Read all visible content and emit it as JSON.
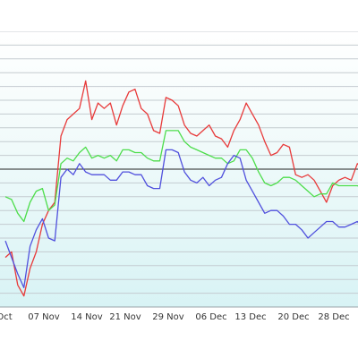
{
  "chart_data": {
    "type": "line",
    "title": "",
    "xlabel": "",
    "ylabel": "",
    "x_tick_labels": [
      "Oct",
      "07 Nov",
      "14 Nov",
      "21 Nov",
      "29 Nov",
      "06 Dec",
      "13 Dec",
      "20 Dec",
      "28 Dec"
    ],
    "x": [
      0,
      1,
      2,
      3,
      4,
      5,
      6,
      7,
      8,
      9,
      10,
      11,
      12,
      13,
      14,
      15,
      16,
      17,
      18,
      19,
      20,
      21,
      22,
      23,
      24,
      25,
      26,
      27,
      28,
      29,
      30,
      31,
      32,
      33,
      34,
      35,
      36,
      37,
      38,
      39,
      40,
      41,
      42,
      43,
      44,
      45,
      46,
      47,
      48,
      49,
      50,
      51,
      52,
      53,
      54,
      55,
      56,
      57,
      58,
      59
    ],
    "ylim": [
      0,
      100
    ],
    "grid": true,
    "reference_line": 50,
    "series": [
      {
        "color": "#e83a3a",
        "values": [
          18,
          20,
          8,
          4,
          14,
          20,
          30,
          35,
          38,
          62,
          68,
          70,
          72,
          82,
          68,
          74,
          72,
          74,
          66,
          73,
          78,
          79,
          72,
          70,
          64,
          63,
          76,
          75,
          73,
          66,
          63,
          62,
          64,
          66,
          62,
          61,
          58,
          64,
          68,
          74,
          70,
          66,
          60,
          55,
          56,
          59,
          58,
          48,
          47,
          48,
          46,
          42,
          38,
          44,
          46,
          47,
          46,
          52,
          50,
          49
        ]
      },
      {
        "color": "#4ddd4b",
        "values": [
          40,
          39,
          34,
          31,
          38,
          42,
          43,
          35,
          37,
          52,
          54,
          53,
          56,
          58,
          54,
          55,
          54,
          55,
          53,
          57,
          57,
          56,
          56,
          54,
          53,
          53,
          64,
          64,
          64,
          60,
          58,
          57,
          56,
          55,
          54,
          54,
          52,
          53,
          57,
          57,
          54,
          49,
          45,
          44,
          45,
          47,
          47,
          46,
          44,
          42,
          40,
          41,
          41,
          45,
          44,
          44,
          44,
          44,
          43,
          42
        ]
      },
      {
        "color": "#5050dd",
        "values": [
          24,
          18,
          12,
          7,
          22,
          28,
          32,
          25,
          24,
          47,
          50,
          48,
          52,
          49,
          48,
          48,
          48,
          46,
          46,
          49,
          49,
          48,
          48,
          44,
          43,
          43,
          57,
          57,
          56,
          49,
          46,
          45,
          47,
          44,
          46,
          47,
          52,
          55,
          54,
          46,
          42,
          38,
          34,
          35,
          35,
          33,
          30,
          30,
          28,
          25,
          27,
          29,
          31,
          31,
          29,
          29,
          30,
          31,
          28,
          26
        ]
      }
    ]
  }
}
